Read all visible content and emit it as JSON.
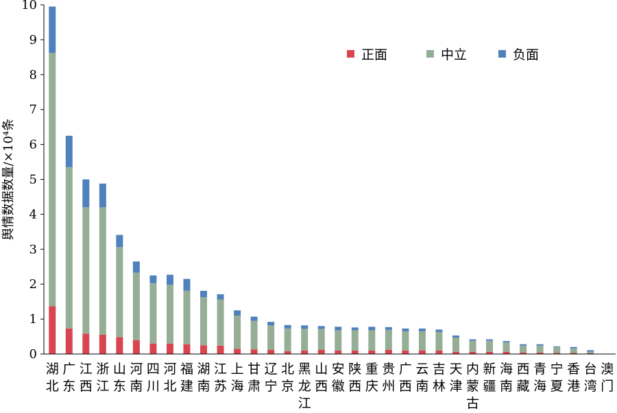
{
  "chart_data": {
    "type": "bar",
    "stacked": true,
    "ylabel": "舆情数据数量/×10⁴条",
    "xlabel": "",
    "ylim": [
      0,
      10
    ],
    "yticks": [
      0,
      1,
      2,
      3,
      4,
      5,
      6,
      7,
      8,
      9,
      10
    ],
    "legend_position": "top-right",
    "categories": [
      "湖北",
      "广东",
      "江西",
      "浙江",
      "山东",
      "河南",
      "四川",
      "河北",
      "福建",
      "湖南",
      "江苏",
      "上海",
      "甘肃",
      "辽宁",
      "北京",
      "黑龙江",
      "山西",
      "安徽",
      "陕西",
      "重庆",
      "贵州",
      "广西",
      "云南",
      "吉林",
      "天津",
      "内蒙古",
      "新疆",
      "海南",
      "西藏",
      "青海",
      "宁夏",
      "香港",
      "台湾",
      "澳门"
    ],
    "series": [
      {
        "name": "正面",
        "color": "#d9454f",
        "values": [
          1.37,
          0.73,
          0.58,
          0.55,
          0.48,
          0.4,
          0.3,
          0.3,
          0.28,
          0.25,
          0.24,
          0.15,
          0.13,
          0.12,
          0.08,
          0.1,
          0.12,
          0.1,
          0.1,
          0.1,
          0.12,
          0.1,
          0.1,
          0.1,
          0.06,
          0.06,
          0.06,
          0.06,
          0.04,
          0.04,
          0.03,
          0.03,
          0.02,
          0.0
        ]
      },
      {
        "name": "中立",
        "color": "#96ad96",
        "values": [
          7.25,
          4.62,
          3.62,
          3.65,
          2.58,
          1.93,
          1.73,
          1.68,
          1.53,
          1.38,
          1.32,
          0.95,
          0.82,
          0.7,
          0.65,
          0.62,
          0.6,
          0.58,
          0.58,
          0.58,
          0.57,
          0.55,
          0.55,
          0.53,
          0.41,
          0.32,
          0.32,
          0.27,
          0.2,
          0.2,
          0.17,
          0.13,
          0.05,
          0.0
        ]
      },
      {
        "name": "负面",
        "color": "#4f81bd",
        "values": [
          1.33,
          0.9,
          0.8,
          0.68,
          0.35,
          0.32,
          0.22,
          0.29,
          0.34,
          0.18,
          0.15,
          0.15,
          0.12,
          0.1,
          0.1,
          0.1,
          0.08,
          0.1,
          0.08,
          0.1,
          0.08,
          0.08,
          0.08,
          0.07,
          0.06,
          0.04,
          0.04,
          0.04,
          0.04,
          0.04,
          0.02,
          0.04,
          0.04,
          0.0
        ]
      }
    ]
  }
}
